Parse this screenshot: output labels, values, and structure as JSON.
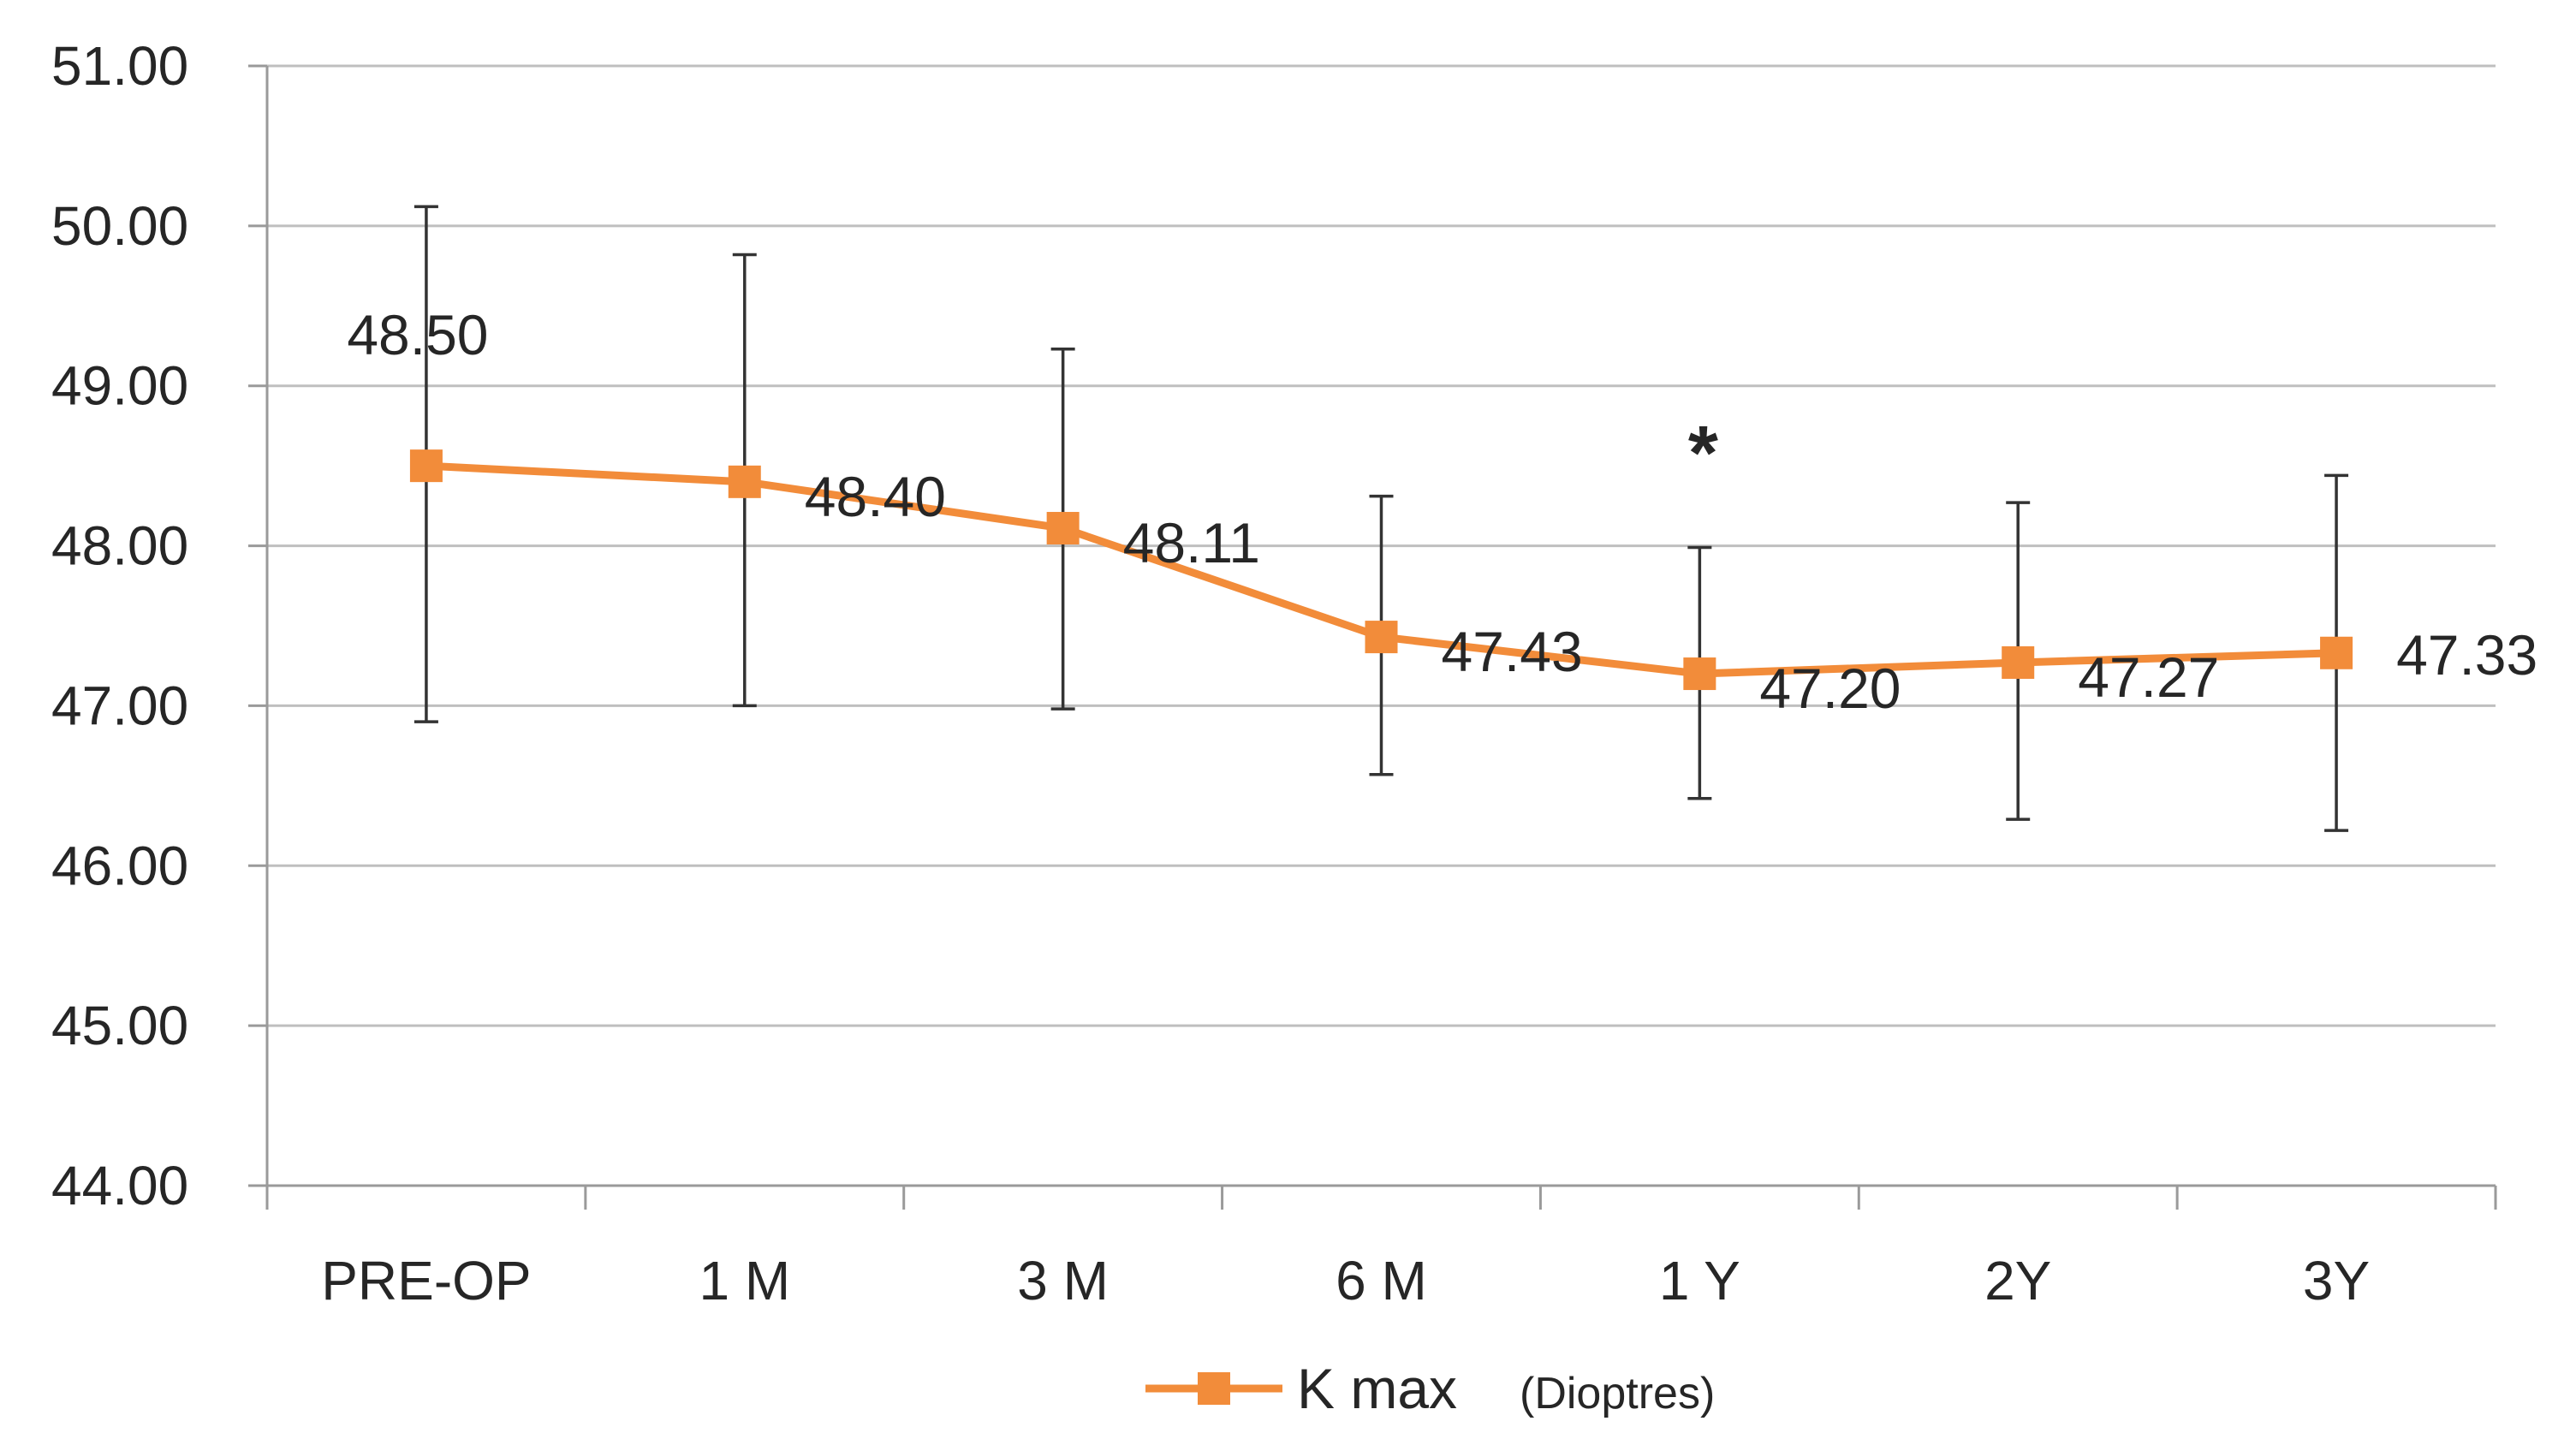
{
  "chart_data": {
    "type": "line",
    "title": "",
    "xlabel": "",
    "ylabel": "",
    "categories": [
      "PRE-OP",
      "1 M",
      "3 M",
      "6 M",
      "1 Y",
      "2Y",
      "3Y"
    ],
    "series": [
      {
        "name": "K max",
        "unit": "(Dioptres)",
        "color": "#F28C3A",
        "values": [
          48.5,
          48.4,
          48.11,
          47.43,
          47.2,
          47.27,
          47.33
        ],
        "labels": [
          "48.50",
          "48.40",
          "48.11",
          "47.43",
          "47.20",
          "47.27",
          "47.33"
        ],
        "error_low": [
          46.9,
          47.0,
          46.98,
          46.57,
          46.42,
          46.29,
          46.22
        ],
        "error_high": [
          50.12,
          49.82,
          49.23,
          48.31,
          47.99,
          48.27,
          48.44
        ]
      }
    ],
    "ylim": [
      44.0,
      51.0
    ],
    "yticks": [
      "44.00",
      "45.00",
      "46.00",
      "47.00",
      "48.00",
      "49.00",
      "50.00",
      "51.00"
    ],
    "grid": true,
    "legend_position": "bottom-center",
    "annotations": [
      {
        "text": "*",
        "category": "1 Y"
      }
    ]
  }
}
